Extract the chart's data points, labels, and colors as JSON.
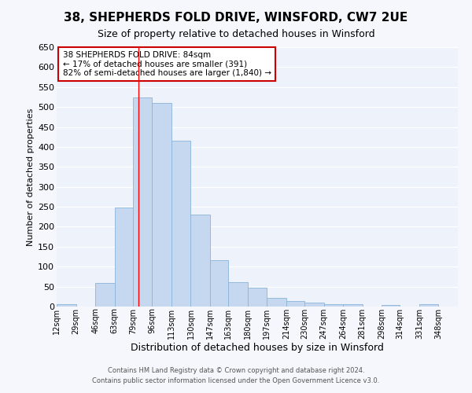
{
  "title": "38, SHEPHERDS FOLD DRIVE, WINSFORD, CW7 2UE",
  "subtitle": "Size of property relative to detached houses in Winsford",
  "xlabel": "Distribution of detached houses by size in Winsford",
  "ylabel": "Number of detached properties",
  "bar_color": "#c5d8f0",
  "bar_edge_color": "#8ab4d8",
  "bg_color": "#edf2fb",
  "grid_color": "#ffffff",
  "bin_labels": [
    "12sqm",
    "29sqm",
    "46sqm",
    "63sqm",
    "79sqm",
    "96sqm",
    "113sqm",
    "130sqm",
    "147sqm",
    "163sqm",
    "180sqm",
    "197sqm",
    "214sqm",
    "230sqm",
    "247sqm",
    "264sqm",
    "281sqm",
    "298sqm",
    "314sqm",
    "331sqm",
    "348sqm"
  ],
  "bar_heights": [
    5,
    0,
    60,
    248,
    523,
    510,
    415,
    230,
    117,
    62,
    47,
    22,
    13,
    9,
    6,
    5,
    0,
    3,
    0,
    5
  ],
  "bin_edges": [
    12,
    29,
    46,
    63,
    79,
    96,
    113,
    130,
    147,
    163,
    180,
    197,
    214,
    230,
    247,
    264,
    281,
    298,
    314,
    331,
    348
  ],
  "ylim": [
    0,
    650
  ],
  "yticks": [
    0,
    50,
    100,
    150,
    200,
    250,
    300,
    350,
    400,
    450,
    500,
    550,
    600,
    650
  ],
  "red_line_x": 84,
  "annotation_title": "38 SHEPHERDS FOLD DRIVE: 84sqm",
  "annotation_line1": "← 17% of detached houses are smaller (391)",
  "annotation_line2": "82% of semi-detached houses are larger (1,840) →",
  "annotation_box_color": "#ffffff",
  "annotation_box_edge": "#cc0000",
  "footer1": "Contains HM Land Registry data © Crown copyright and database right 2024.",
  "footer2": "Contains public sector information licensed under the Open Government Licence v3.0.",
  "fig_bg": "#f5f7fc"
}
